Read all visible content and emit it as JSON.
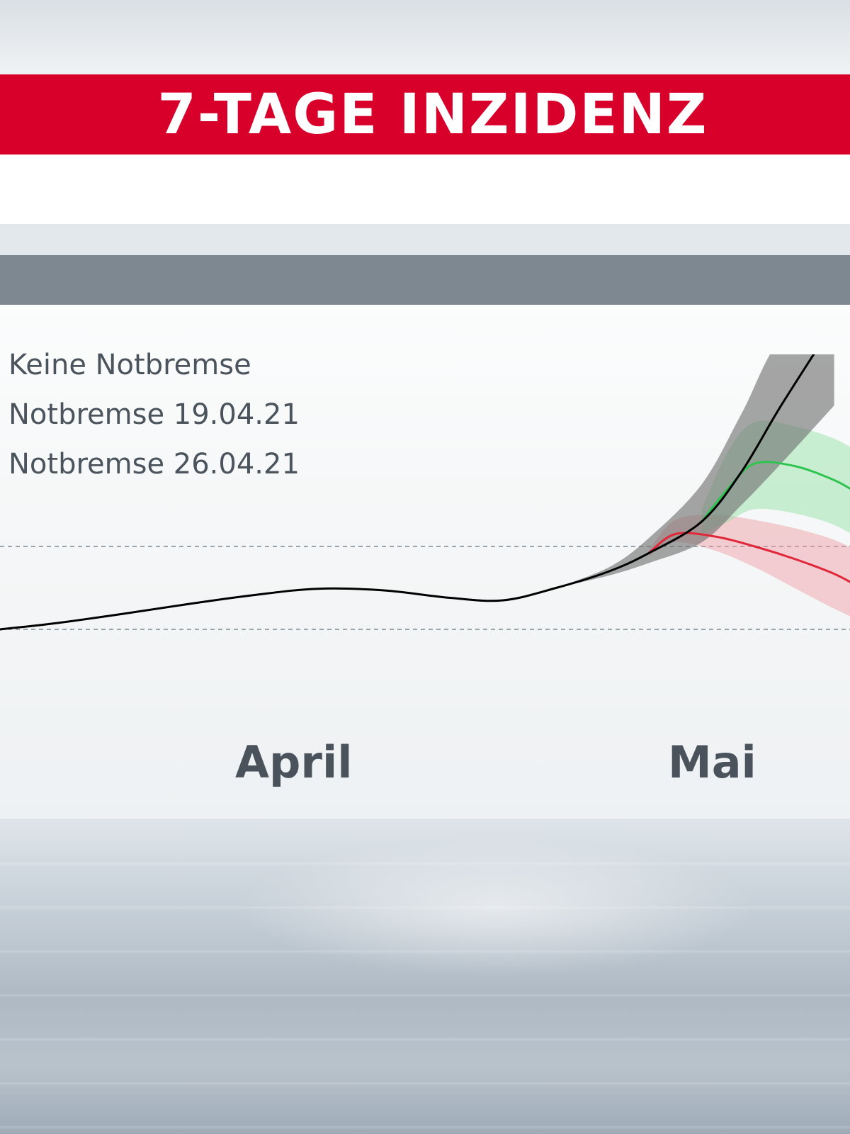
{
  "title": "7-TAGE INZIDENZ",
  "colors": {
    "title_bar": "#d8002a",
    "header_band": "#7e8891",
    "keine_notbremse": "#000000",
    "notbremse_19": "#2ec44f",
    "notbremse_26": "#e0283a",
    "band_keine": "#6f6f6f",
    "band_19": "#8fe0a0",
    "band_26": "#f09aa0"
  },
  "legend": [
    {
      "label": "Keine Notbremse"
    },
    {
      "label": "Notbremse 19.04.21"
    },
    {
      "label": "Notbremse 26.04.21"
    }
  ],
  "chart_data": {
    "type": "line",
    "x_axis": {
      "type": "time",
      "tick_labels": [
        "April",
        "Mai"
      ],
      "range": [
        "2021-03-08",
        "2021-05-12"
      ]
    },
    "reference_lines": [
      {
        "style": "dashed",
        "value": 200
      },
      {
        "style": "dashed",
        "value": 100
      }
    ],
    "grid": false,
    "series": [
      {
        "name": "Keine Notbremse",
        "color": "#000000",
        "x": [
          "2021-03-08",
          "2021-03-12",
          "2021-03-17",
          "2021-03-22",
          "2021-03-27",
          "2021-04-01",
          "2021-04-06",
          "2021-04-11",
          "2021-04-15",
          "2021-04-19",
          "2021-04-23",
          "2021-04-26",
          "2021-04-30",
          "2021-05-03",
          "2021-05-06",
          "2021-05-10"
        ],
        "y": [
          100,
          107,
          118,
          130,
          141,
          149,
          147,
          138,
          135,
          150,
          170,
          192,
          230,
          290,
          370,
          470
        ],
        "band_lower": [
          null,
          null,
          null,
          null,
          null,
          null,
          null,
          null,
          null,
          150,
          165,
          180,
          205,
          250,
          300,
          370
        ],
        "band_upper": [
          null,
          null,
          null,
          null,
          null,
          null,
          null,
          null,
          null,
          150,
          175,
          210,
          275,
          360,
          450,
          470
        ]
      },
      {
        "name": "Notbremse 19.04.21",
        "color": "#2ec44f",
        "x": [
          "2021-04-30",
          "2021-05-02",
          "2021-05-04",
          "2021-05-07",
          "2021-05-10",
          "2021-05-12"
        ],
        "y": [
          230,
          270,
          300,
          297,
          280,
          262
        ],
        "band_lower": [
          215,
          230,
          245,
          240,
          226,
          208
        ],
        "band_upper": [
          245,
          315,
          350,
          345,
          330,
          312
        ]
      },
      {
        "name": "Notbremse 26.04.21",
        "color": "#e0283a",
        "x": [
          "2021-04-26",
          "2021-04-28",
          "2021-05-01",
          "2021-05-04",
          "2021-05-07",
          "2021-05-10",
          "2021-05-12"
        ],
        "y": [
          192,
          215,
          212,
          200,
          185,
          167,
          150
        ],
        "band_lower": [
          188,
          205,
          195,
          175,
          150,
          125,
          110
        ],
        "band_upper": [
          196,
          232,
          238,
          232,
          222,
          208,
          192
        ]
      }
    ]
  }
}
